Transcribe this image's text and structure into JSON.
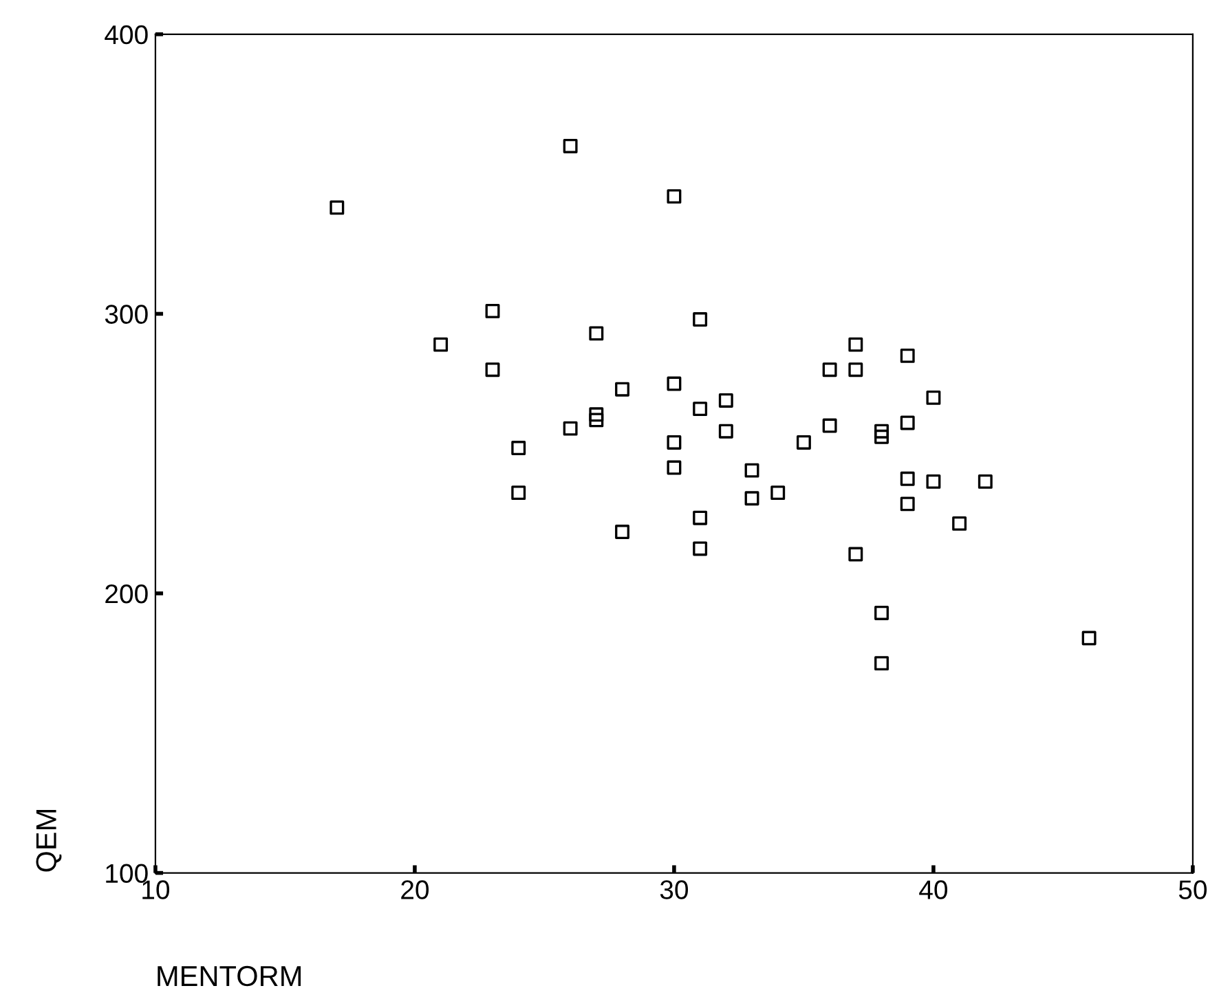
{
  "chart_data": {
    "type": "scatter",
    "xlabel": "MENTORM",
    "ylabel": "QEM",
    "xlim": [
      10,
      50
    ],
    "ylim": [
      100,
      400
    ],
    "xticks": [
      10,
      20,
      30,
      40,
      50
    ],
    "yticks": [
      100,
      200,
      300,
      400
    ],
    "marker": "square",
    "grid": false,
    "legend": false,
    "series": [
      {
        "color": "#000000",
        "x": [
          17,
          26,
          30,
          23,
          21,
          27,
          31,
          23,
          28,
          30,
          32,
          31,
          27,
          27,
          26,
          32,
          24,
          30,
          30,
          33,
          24,
          33,
          31,
          28,
          31,
          37,
          39,
          36,
          37,
          40,
          36,
          39,
          38,
          38,
          35,
          34,
          39,
          40,
          42,
          39,
          41,
          37,
          38,
          46,
          38
        ],
        "values": [
          338,
          360,
          342,
          301,
          289,
          293,
          298,
          280,
          273,
          275,
          269,
          266,
          264,
          262,
          259,
          258,
          252,
          254,
          245,
          244,
          236,
          234,
          227,
          222,
          216,
          289,
          285,
          280,
          280,
          270,
          260,
          261,
          258,
          256,
          254,
          236,
          241,
          240,
          240,
          232,
          225,
          214,
          193,
          184,
          175
        ]
      }
    ]
  }
}
